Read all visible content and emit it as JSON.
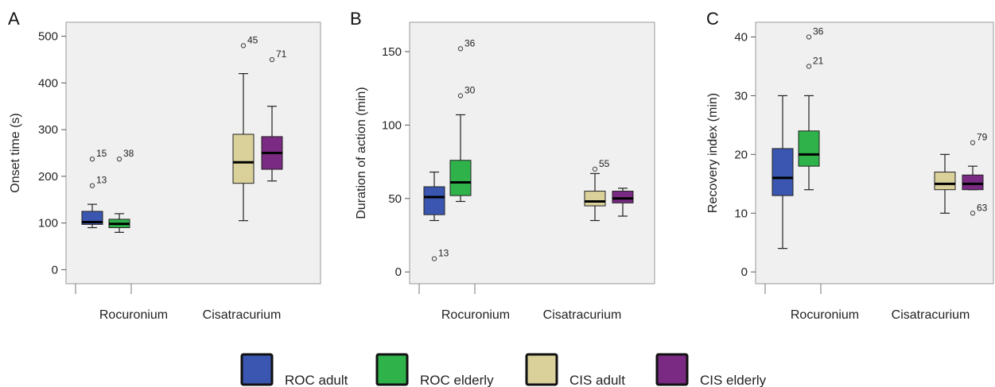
{
  "chart_data": [
    {
      "type": "box",
      "panel": "A",
      "ylabel": "Onset time (s)",
      "ylim": [
        -30,
        530
      ],
      "yticks": [
        0,
        100,
        200,
        300,
        400,
        500
      ],
      "categories": [
        "Rocuronium",
        "Cisatracurium"
      ],
      "series": [
        {
          "name": "ROC adult",
          "category": "Rocuronium",
          "whisker_low": 90,
          "q1": 97,
          "median": 102,
          "q3": 125,
          "whisker_high": 140,
          "outliers": [
            {
              "value": 237,
              "label": "15"
            },
            {
              "value": 180,
              "label": "13"
            }
          ]
        },
        {
          "name": "ROC elderly",
          "category": "Rocuronium",
          "whisker_low": 80,
          "q1": 90,
          "median": 98,
          "q3": 108,
          "whisker_high": 120,
          "outliers": [
            {
              "value": 237,
              "label": "38"
            }
          ]
        },
        {
          "name": "CIS adult",
          "category": "Cisatracurium",
          "whisker_low": 105,
          "q1": 185,
          "median": 230,
          "q3": 290,
          "whisker_high": 420,
          "outliers": [
            {
              "value": 480,
              "label": "45"
            }
          ]
        },
        {
          "name": "CIS elderly",
          "category": "Cisatracurium",
          "whisker_low": 190,
          "q1": 215,
          "median": 250,
          "q3": 285,
          "whisker_high": 350,
          "outliers": [
            {
              "value": 450,
              "label": "71"
            }
          ]
        }
      ]
    },
    {
      "type": "box",
      "panel": "B",
      "ylabel": "Duration of action (min)",
      "ylim": [
        -8,
        170
      ],
      "yticks": [
        0,
        50,
        100,
        150
      ],
      "categories": [
        "Rocuronium",
        "Cisatracurium"
      ],
      "series": [
        {
          "name": "ROC adult",
          "category": "Rocuronium",
          "whisker_low": 35,
          "q1": 39,
          "median": 51,
          "q3": 58,
          "whisker_high": 68,
          "outliers": [
            {
              "value": 9,
              "label": "13"
            }
          ]
        },
        {
          "name": "ROC elderly",
          "category": "Rocuronium",
          "whisker_low": 48,
          "q1": 52,
          "median": 61,
          "q3": 76,
          "whisker_high": 107,
          "outliers": [
            {
              "value": 152,
              "label": "36"
            },
            {
              "value": 120,
              "label": "30"
            }
          ]
        },
        {
          "name": "CIS adult",
          "category": "Cisatracurium",
          "whisker_low": 35,
          "q1": 45,
          "median": 48,
          "q3": 55,
          "whisker_high": 67,
          "outliers": [
            {
              "value": 70,
              "label": "55"
            }
          ]
        },
        {
          "name": "CIS elderly",
          "category": "Cisatracurium",
          "whisker_low": 38,
          "q1": 47,
          "median": 50,
          "q3": 55,
          "whisker_high": 57,
          "outliers": []
        }
      ]
    },
    {
      "type": "box",
      "panel": "C",
      "ylabel": "Recovery index (min)",
      "ylim": [
        -2,
        42.5
      ],
      "yticks": [
        0,
        10,
        20,
        30,
        40
      ],
      "categories": [
        "Rocuronium",
        "Cisatracurium"
      ],
      "series": [
        {
          "name": "ROC adult",
          "category": "Rocuronium",
          "whisker_low": 4,
          "q1": 13,
          "median": 16,
          "q3": 21,
          "whisker_high": 30,
          "outliers": []
        },
        {
          "name": "ROC elderly",
          "category": "Rocuronium",
          "whisker_low": 14,
          "q1": 18,
          "median": 20,
          "q3": 24,
          "whisker_high": 30,
          "outliers": [
            {
              "value": 40,
              "label": "36"
            },
            {
              "value": 35,
              "label": "21"
            }
          ]
        },
        {
          "name": "CIS adult",
          "category": "Cisatracurium",
          "whisker_low": 10,
          "q1": 14,
          "median": 15,
          "q3": 17,
          "whisker_high": 20,
          "outliers": []
        },
        {
          "name": "CIS elderly",
          "category": "Cisatracurium",
          "whisker_low": 14,
          "q1": 14,
          "median": 15,
          "q3": 16.5,
          "whisker_high": 18,
          "outliers": [
            {
              "value": 22,
              "label": "79"
            },
            {
              "value": 10,
              "label": "63"
            }
          ]
        }
      ]
    }
  ],
  "legend": {
    "placement": "bottom-center",
    "items": [
      {
        "label": "ROC adult",
        "color": "#3a56b0"
      },
      {
        "label": "ROC elderly",
        "color": "#2fb24a"
      },
      {
        "label": "CIS adult",
        "color": "#d9d09a"
      },
      {
        "label": "CIS elderly",
        "color": "#7a2a82"
      }
    ]
  },
  "style": {
    "plot_background": "#f0f0f0",
    "series_colors": {
      "ROC adult": "#3a56b0",
      "ROC elderly": "#2fb24a",
      "CIS adult": "#d9d09a",
      "CIS elderly": "#7a2a82"
    }
  }
}
